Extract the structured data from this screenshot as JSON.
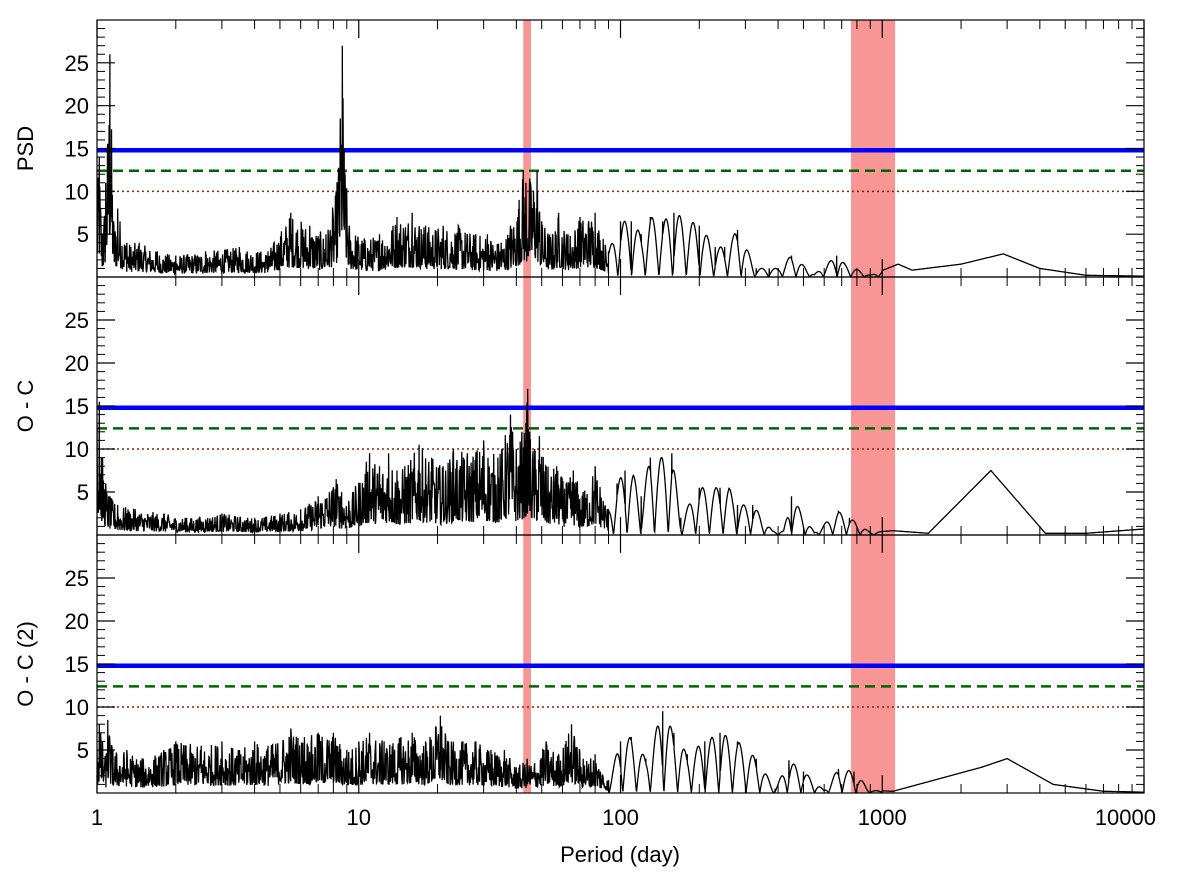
{
  "chart_data": {
    "type": "line",
    "xlabel": "Period (day)",
    "xscale": "log",
    "xlim": [
      1,
      10000
    ],
    "x_ticks": [
      {
        "value": 1,
        "label": "1"
      },
      {
        "value": 10,
        "label": "10"
      },
      {
        "value": 100,
        "label": "100"
      },
      {
        "value": 1000,
        "label": "1000"
      },
      {
        "value": 10000,
        "label": "10000"
      }
    ],
    "shaded_bands": [
      {
        "from": 42.5,
        "to": 45.5,
        "color": "#f89696"
      },
      {
        "from": 760,
        "to": 1120,
        "color": "#f89696"
      }
    ],
    "threshold_lines": [
      {
        "y": 14.8,
        "style": "solid",
        "color": "#0000ff"
      },
      {
        "y": 12.4,
        "style": "dashed",
        "color": "#006400"
      },
      {
        "y": 10.0,
        "style": "dotted",
        "color": "#8b2500"
      }
    ],
    "panels": [
      {
        "ylabel": "PSD",
        "ylim": [
          0,
          30
        ],
        "y_ticks": [
          5,
          10,
          15,
          20,
          25
        ],
        "peaks": [
          [
            1.0,
            9
          ],
          [
            1.02,
            14
          ],
          [
            1.05,
            5
          ],
          [
            1.08,
            11
          ],
          [
            1.12,
            26
          ],
          [
            1.16,
            6
          ],
          [
            1.2,
            8
          ],
          [
            1.3,
            4
          ],
          [
            1.45,
            4
          ],
          [
            1.7,
            3
          ],
          [
            2.0,
            2.5
          ],
          [
            2.6,
            3
          ],
          [
            3.5,
            3.5
          ],
          [
            4.5,
            3
          ],
          [
            5.5,
            7.5
          ],
          [
            6.5,
            6
          ],
          [
            7.5,
            5
          ],
          [
            8.2,
            10
          ],
          [
            8.5,
            18.5
          ],
          [
            8.65,
            27
          ],
          [
            8.8,
            15
          ],
          [
            9.2,
            6
          ],
          [
            10.5,
            4.5
          ],
          [
            12,
            5
          ],
          [
            14,
            7
          ],
          [
            16,
            7.5
          ],
          [
            18,
            6
          ],
          [
            21,
            6
          ],
          [
            24,
            6
          ],
          [
            28,
            5
          ],
          [
            31,
            5
          ],
          [
            35,
            4
          ],
          [
            38,
            6
          ],
          [
            41,
            9
          ],
          [
            42.5,
            12.5
          ],
          [
            43.5,
            11
          ],
          [
            45,
            11.5
          ],
          [
            48,
            12.4
          ],
          [
            50,
            6.5
          ],
          [
            55,
            5
          ],
          [
            58,
            7.5
          ],
          [
            63,
            5
          ],
          [
            70,
            7
          ],
          [
            80,
            7.5
          ],
          [
            90,
            3
          ],
          [
            100,
            6.5
          ],
          [
            110,
            6.5
          ],
          [
            120,
            5
          ],
          [
            130,
            7
          ],
          [
            145,
            6.5
          ],
          [
            160,
            7.5
          ],
          [
            200,
            6
          ],
          [
            230,
            3.5
          ],
          [
            250,
            3.5
          ],
          [
            280,
            5.5
          ],
          [
            330,
            1
          ],
          [
            370,
            1
          ],
          [
            400,
            1
          ],
          [
            450,
            2.5
          ],
          [
            550,
            0.3
          ],
          [
            670,
            2.5
          ],
          [
            720,
            1.5
          ],
          [
            900,
            0.2
          ],
          [
            1150,
            1.5
          ],
          [
            1300,
            0.8
          ],
          [
            2000,
            1.5
          ],
          [
            2900,
            2.7
          ],
          [
            4000,
            1
          ],
          [
            6000,
            0.2
          ],
          [
            10000,
            0.1
          ]
        ]
      },
      {
        "ylabel": "O - C",
        "ylim": [
          0,
          30
        ],
        "y_ticks": [
          5,
          10,
          15,
          20,
          25
        ],
        "peaks": [
          [
            1.0,
            13
          ],
          [
            1.02,
            15.5
          ],
          [
            1.05,
            9
          ],
          [
            1.08,
            6
          ],
          [
            1.12,
            4.5
          ],
          [
            1.2,
            3.5
          ],
          [
            1.4,
            3
          ],
          [
            1.8,
            2.5
          ],
          [
            2.2,
            2
          ],
          [
            3,
            2.5
          ],
          [
            4,
            2
          ],
          [
            5,
            2.5
          ],
          [
            6,
            3
          ],
          [
            7,
            4.5
          ],
          [
            8.2,
            6.5
          ],
          [
            8.6,
            5
          ],
          [
            9.5,
            5
          ],
          [
            11,
            9.5
          ],
          [
            12,
            8
          ],
          [
            13,
            9.5
          ],
          [
            14,
            7.5
          ],
          [
            15,
            8
          ],
          [
            17,
            10.5
          ],
          [
            19,
            9
          ],
          [
            21,
            8
          ],
          [
            23,
            10
          ],
          [
            26,
            9.5
          ],
          [
            30,
            11
          ],
          [
            34,
            9
          ],
          [
            38,
            14
          ],
          [
            40,
            10
          ],
          [
            42,
            12
          ],
          [
            43.5,
            13
          ],
          [
            44.2,
            17
          ],
          [
            45,
            12
          ],
          [
            47,
            10
          ],
          [
            49,
            11.5
          ],
          [
            52,
            8
          ],
          [
            57,
            8
          ],
          [
            62,
            6
          ],
          [
            66,
            7.5
          ],
          [
            72,
            5
          ],
          [
            80,
            8
          ],
          [
            90,
            3
          ],
          [
            97,
            6
          ],
          [
            104,
            7.5
          ],
          [
            112,
            7
          ],
          [
            120,
            4.5
          ],
          [
            130,
            9
          ],
          [
            143,
            9
          ],
          [
            157,
            9.5
          ],
          [
            170,
            2
          ],
          [
            200,
            5.5
          ],
          [
            240,
            5.5
          ],
          [
            260,
            5.5
          ],
          [
            280,
            3.5
          ],
          [
            320,
            3.5
          ],
          [
            380,
            0.5
          ],
          [
            420,
            0.5
          ],
          [
            450,
            4.5
          ],
          [
            550,
            0.3
          ],
          [
            680,
            2.7
          ],
          [
            750,
            2
          ],
          [
            900,
            0.3
          ],
          [
            1100,
            0.5
          ],
          [
            1500,
            0.2
          ],
          [
            2600,
            7.5
          ],
          [
            4200,
            0.2
          ],
          [
            6000,
            0.2
          ],
          [
            10000,
            0.7
          ]
        ]
      },
      {
        "ylabel": "O - C (2)",
        "ylim": [
          0,
          30
        ],
        "y_ticks": [
          5,
          10,
          15,
          20,
          25
        ],
        "peaks": [
          [
            1.0,
            5
          ],
          [
            1.02,
            8
          ],
          [
            1.05,
            6
          ],
          [
            1.08,
            4
          ],
          [
            1.1,
            8.5
          ],
          [
            1.15,
            5
          ],
          [
            1.3,
            5
          ],
          [
            1.5,
            4
          ],
          [
            1.8,
            5
          ],
          [
            2.0,
            6
          ],
          [
            2.5,
            5.5
          ],
          [
            3,
            6
          ],
          [
            3.5,
            5
          ],
          [
            4,
            6
          ],
          [
            4.5,
            5.5
          ],
          [
            5.5,
            7.5
          ],
          [
            6.2,
            6.5
          ],
          [
            7,
            7
          ],
          [
            8,
            7
          ],
          [
            9,
            5
          ],
          [
            10,
            6
          ],
          [
            11,
            7
          ],
          [
            12.5,
            6
          ],
          [
            14.5,
            6.5
          ],
          [
            16,
            7
          ],
          [
            18,
            6
          ],
          [
            20.5,
            9
          ],
          [
            22,
            6
          ],
          [
            25,
            6
          ],
          [
            28,
            6
          ],
          [
            32,
            5
          ],
          [
            36,
            5
          ],
          [
            40,
            3
          ],
          [
            44,
            4
          ],
          [
            47,
            3.5
          ],
          [
            52,
            6
          ],
          [
            58,
            4.5
          ],
          [
            65,
            8
          ],
          [
            72,
            4
          ],
          [
            80,
            4.5
          ],
          [
            90,
            1.5
          ],
          [
            100,
            6
          ],
          [
            110,
            6.5
          ],
          [
            125,
            4
          ],
          [
            145,
            9.5
          ],
          [
            160,
            7
          ],
          [
            180,
            4.5
          ],
          [
            210,
            6
          ],
          [
            240,
            7
          ],
          [
            280,
            6
          ],
          [
            330,
            4
          ],
          [
            390,
            0.5
          ],
          [
            440,
            3.8
          ],
          [
            500,
            2.5
          ],
          [
            600,
            0.3
          ],
          [
            680,
            2.8
          ],
          [
            780,
            2.5
          ],
          [
            900,
            0.3
          ],
          [
            1100,
            0.2
          ],
          [
            2400,
            3
          ],
          [
            3000,
            4
          ],
          [
            4500,
            1
          ],
          [
            7000,
            0.2
          ],
          [
            10000,
            0.1
          ]
        ]
      }
    ]
  }
}
